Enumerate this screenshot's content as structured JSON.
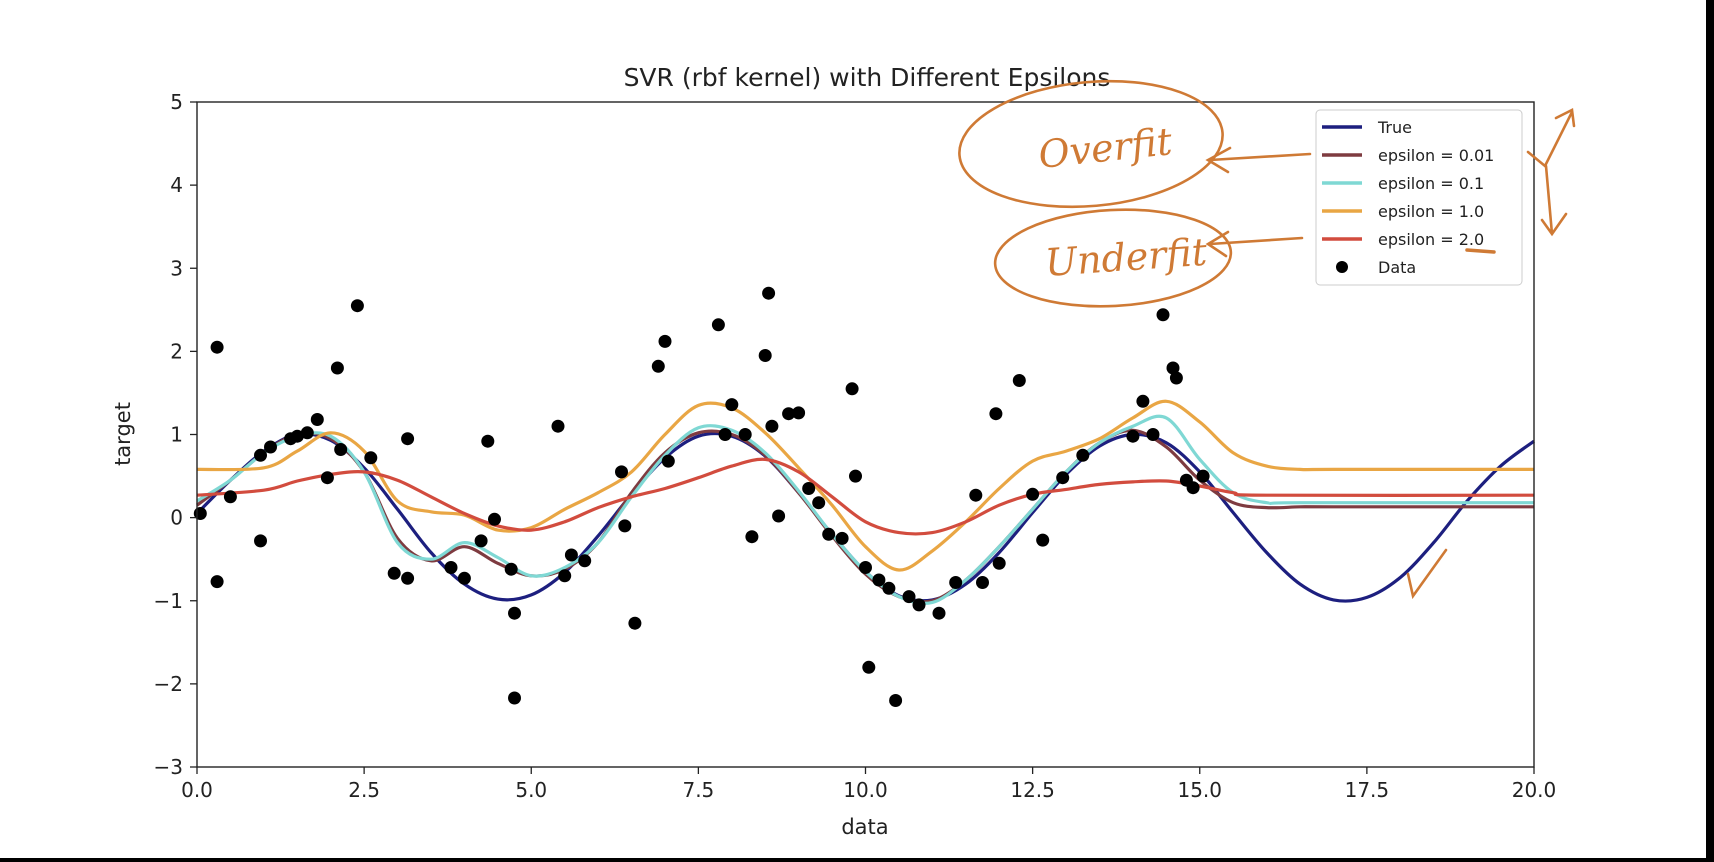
{
  "chart_data": {
    "type": "line",
    "title": "SVR (rbf kernel) with Different Epsilons",
    "xlabel": "data",
    "ylabel": "target",
    "xlim": [
      0,
      20
    ],
    "ylim": [
      -3,
      5
    ],
    "xticks": [
      "0.0",
      "2.5",
      "5.0",
      "7.5",
      "10.0",
      "12.5",
      "15.0",
      "17.5",
      "20.0"
    ],
    "yticks": [
      "−3",
      "−2",
      "−1",
      "0",
      "1",
      "2",
      "3",
      "4",
      "5"
    ],
    "grid": false,
    "legend_position": "top-right",
    "series": [
      {
        "name": "True",
        "color": "#1d1f7f",
        "x": [
          0,
          0.5,
          1,
          1.5,
          2,
          2.5,
          3,
          3.5,
          4,
          4.5,
          5,
          5.5,
          6,
          6.5,
          7,
          7.5,
          8,
          8.5,
          9,
          9.5,
          10,
          10.5,
          11,
          11.5,
          12,
          12.5,
          13,
          13.5,
          14,
          14.5,
          15,
          15.5,
          16,
          16.5,
          17,
          17.5,
          18,
          18.5,
          19,
          19.5,
          20
        ],
        "y": [
          0.05,
          0.45,
          0.8,
          1.0,
          0.93,
          0.6,
          0.1,
          -0.42,
          -0.8,
          -0.98,
          -0.93,
          -0.66,
          -0.22,
          0.28,
          0.72,
          0.98,
          0.98,
          0.74,
          0.3,
          -0.2,
          -0.65,
          -0.94,
          -0.99,
          -0.8,
          -0.42,
          0.06,
          0.52,
          0.86,
          1.0,
          0.9,
          0.55,
          0.06,
          -0.42,
          -0.8,
          -0.99,
          -0.96,
          -0.72,
          -0.3,
          0.2,
          0.62,
          0.92
        ]
      },
      {
        "name": "epsilon = 0.01",
        "color": "#7e3b40",
        "x": [
          0,
          0.5,
          1,
          1.5,
          2,
          2.5,
          3,
          3.5,
          4,
          4.5,
          5,
          5.5,
          6,
          6.5,
          7,
          7.5,
          8,
          8.5,
          9,
          9.5,
          10,
          10.5,
          11,
          11.5,
          12,
          12.5,
          13,
          13.5,
          14,
          14.5,
          15,
          15.5,
          16,
          16.5,
          17,
          20
        ],
        "y": [
          0.15,
          0.45,
          0.78,
          1.0,
          0.95,
          0.55,
          -0.25,
          -0.52,
          -0.35,
          -0.55,
          -0.7,
          -0.62,
          -0.3,
          0.3,
          0.78,
          1.02,
          1.0,
          0.75,
          0.3,
          -0.22,
          -0.68,
          -0.95,
          -1.0,
          -0.75,
          -0.35,
          0.1,
          0.55,
          0.9,
          1.05,
          0.85,
          0.45,
          0.18,
          0.12,
          0.13,
          0.13,
          0.13
        ]
      },
      {
        "name": "epsilon = 0.1",
        "color": "#7fd8d4",
        "x": [
          0,
          0.5,
          1,
          1.5,
          2,
          2.5,
          3,
          3.5,
          4,
          4.5,
          5,
          5.5,
          6,
          6.5,
          7,
          7.5,
          8,
          8.5,
          9,
          9.5,
          10,
          10.5,
          11,
          11.5,
          12,
          12.5,
          13,
          13.5,
          14,
          14.5,
          15,
          15.5,
          16,
          16.5,
          20
        ],
        "y": [
          0.2,
          0.45,
          0.78,
          0.98,
          0.98,
          0.55,
          -0.3,
          -0.5,
          -0.3,
          -0.48,
          -0.7,
          -0.6,
          -0.3,
          0.25,
          0.75,
          1.08,
          1.05,
          0.78,
          0.32,
          -0.2,
          -0.65,
          -0.95,
          -1.02,
          -0.75,
          -0.35,
          0.1,
          0.55,
          0.9,
          1.1,
          1.2,
          0.7,
          0.3,
          0.18,
          0.18,
          0.18
        ]
      },
      {
        "name": "epsilon = 1.0",
        "color": "#e9a644",
        "x": [
          0,
          1,
          1.5,
          2,
          2.5,
          3,
          3.5,
          4,
          4.5,
          5,
          5.5,
          6,
          6.5,
          7,
          7.5,
          8,
          8.5,
          9,
          9.5,
          10,
          10.5,
          11,
          11.5,
          12,
          12.5,
          13,
          13.5,
          14,
          14.5,
          15,
          15.5,
          16,
          16.5,
          17,
          20
        ],
        "y": [
          0.58,
          0.6,
          0.8,
          1.02,
          0.8,
          0.2,
          0.07,
          0.03,
          -0.15,
          -0.12,
          0.1,
          0.3,
          0.55,
          1.0,
          1.35,
          1.32,
          1.02,
          0.6,
          0.15,
          -0.35,
          -0.63,
          -0.4,
          -0.05,
          0.35,
          0.68,
          0.8,
          0.95,
          1.2,
          1.4,
          1.15,
          0.78,
          0.62,
          0.58,
          0.58,
          0.58
        ]
      },
      {
        "name": "epsilon = 2.0",
        "color": "#d24c3e",
        "x": [
          0,
          1,
          1.5,
          2,
          2.5,
          3,
          3.5,
          4,
          4.5,
          5,
          5.5,
          6,
          6.5,
          7,
          7.5,
          8,
          8.5,
          9,
          9.5,
          10,
          10.5,
          11,
          11.5,
          12,
          12.5,
          13,
          13.5,
          14,
          14.5,
          15,
          15.5,
          16,
          20
        ],
        "y": [
          0.27,
          0.33,
          0.44,
          0.52,
          0.55,
          0.45,
          0.25,
          0.05,
          -0.1,
          -0.15,
          -0.05,
          0.12,
          0.25,
          0.35,
          0.48,
          0.62,
          0.7,
          0.55,
          0.25,
          -0.05,
          -0.18,
          -0.18,
          -0.05,
          0.15,
          0.28,
          0.34,
          0.4,
          0.43,
          0.44,
          0.38,
          0.3,
          0.27,
          0.27
        ]
      }
    ],
    "scatter": {
      "name": "Data",
      "color": "#000000",
      "x": [
        0.05,
        0.3,
        0.3,
        0.5,
        0.95,
        0.95,
        1.1,
        1.4,
        1.5,
        1.65,
        1.8,
        1.95,
        2.1,
        2.15,
        2.4,
        2.6,
        2.95,
        3.15,
        3.15,
        3.8,
        4.0,
        4.25,
        4.35,
        4.45,
        4.7,
        4.75,
        4.75,
        5.4,
        5.5,
        5.6,
        5.8,
        6.35,
        6.4,
        6.55,
        6.9,
        7.0,
        7.05,
        7.8,
        7.9,
        8.0,
        8.2,
        8.3,
        8.5,
        8.55,
        8.6,
        8.7,
        8.85,
        9.0,
        9.15,
        9.3,
        9.45,
        9.65,
        9.8,
        9.85,
        10.0,
        10.05,
        10.2,
        10.35,
        10.45,
        10.65,
        10.8,
        11.1,
        11.35,
        11.65,
        11.75,
        11.95,
        12.0,
        12.3,
        12.5,
        12.65,
        12.95,
        13.25,
        14.0,
        14.15,
        14.3,
        14.45,
        14.6,
        14.65,
        14.8,
        14.9,
        15.05
      ],
      "y": [
        0.05,
        2.05,
        -0.77,
        0.25,
        0.75,
        -0.28,
        0.85,
        0.95,
        0.98,
        1.02,
        1.18,
        0.48,
        1.8,
        0.82,
        2.55,
        0.72,
        -0.67,
        0.95,
        -0.73,
        -0.6,
        -0.73,
        -0.28,
        0.92,
        -0.02,
        -0.62,
        -2.17,
        -1.15,
        1.1,
        -0.7,
        -0.45,
        -0.52,
        0.55,
        -0.1,
        -1.27,
        1.82,
        2.12,
        0.68,
        2.32,
        1.0,
        1.36,
        1.0,
        -0.23,
        1.95,
        2.7,
        1.1,
        0.02,
        1.25,
        1.26,
        0.35,
        0.18,
        -0.2,
        -0.25,
        1.55,
        0.5,
        -0.6,
        -1.8,
        -0.75,
        -0.85,
        -2.2,
        -0.95,
        -1.05,
        -1.15,
        -0.78,
        0.27,
        -0.78,
        1.25,
        -0.55,
        1.65,
        0.28,
        -0.27,
        0.48,
        0.75,
        0.98,
        1.4,
        1.0,
        2.44,
        1.8,
        1.68,
        0.45,
        0.36,
        0.5
      ]
    }
  },
  "annotations": {
    "overfit": "Overfit",
    "underfit": "Underfit"
  }
}
